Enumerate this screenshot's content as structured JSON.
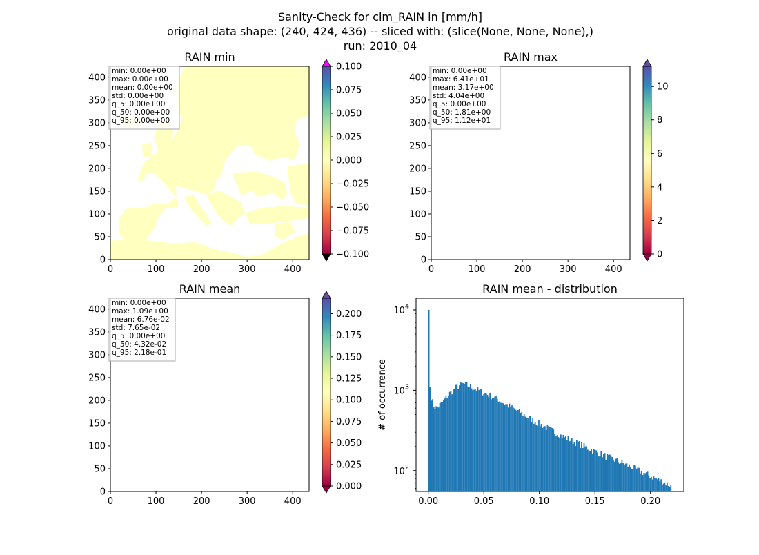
{
  "figure": {
    "title_lines": [
      "Sanity-Check for clm_RAIN in [mm/h]",
      "original data shape: (240, 424, 436) -- sliced with: (slice(None, None, None),)",
      "run: 2010_04"
    ]
  },
  "colors": {
    "colormap": [
      "#9e0142",
      "#d53e4f",
      "#f46d43",
      "#fdae61",
      "#fee08b",
      "#ffffbf",
      "#e6f598",
      "#abdda4",
      "#66c2a5",
      "#3288bd",
      "#5e4fa2"
    ],
    "cbar_over_min_panel": "#ff00ff",
    "cbar_under_min_panel": "#000000",
    "hist_bar": "#1f77b4",
    "box_edge": "#aaaaaa"
  },
  "chart_data": [
    {
      "type": "heatmap",
      "title": "RAIN min",
      "x_ticks": [
        "0",
        "100",
        "200",
        "300",
        "400"
      ],
      "y_ticks": [
        "0",
        "50",
        "100",
        "150",
        "200",
        "250",
        "300",
        "350",
        "400"
      ],
      "xlim": [
        0,
        436
      ],
      "ylim": [
        0,
        424
      ],
      "colorbar": {
        "ticks": [
          "−0.100",
          "−0.075",
          "−0.050",
          "−0.025",
          "0.000",
          "0.025",
          "0.050",
          "0.075",
          "0.100"
        ],
        "range": [
          -0.1,
          0.1
        ],
        "extend": "both"
      },
      "stats": [
        "min: 0.00e+00",
        "max: 0.00e+00",
        "mean: 0.00e+00",
        "std: 0.00e+00",
        "q_5: 0.00e+00",
        "q_50: 0.00e+00",
        "q_95: 0.00e+00"
      ],
      "field_value_on_land": 0.0
    },
    {
      "type": "heatmap",
      "title": "RAIN max",
      "x_ticks": [
        "0",
        "100",
        "200",
        "300",
        "400"
      ],
      "y_ticks": [
        "0",
        "50",
        "100",
        "150",
        "200",
        "250",
        "300",
        "350",
        "400"
      ],
      "xlim": [
        0,
        436
      ],
      "ylim": [
        0,
        424
      ],
      "colorbar": {
        "ticks": [
          "0",
          "2",
          "4",
          "6",
          "8",
          "10"
        ],
        "range": [
          0,
          11.2
        ],
        "extend": "both"
      },
      "stats": [
        "min: 0.00e+00",
        "max: 6.41e+01",
        "mean: 3.17e+00",
        "std: 4.04e+00",
        "q_5: 0.00e+00",
        "q_50: 1.81e+00",
        "q_95: 1.12e+01"
      ]
    },
    {
      "type": "heatmap",
      "title": "RAIN mean",
      "x_ticks": [
        "0",
        "100",
        "200",
        "300",
        "400"
      ],
      "y_ticks": [
        "0",
        "50",
        "100",
        "150",
        "200",
        "250",
        "300",
        "350",
        "400"
      ],
      "xlim": [
        0,
        436
      ],
      "ylim": [
        0,
        424
      ],
      "colorbar": {
        "ticks": [
          "0.000",
          "0.025",
          "0.050",
          "0.075",
          "0.100",
          "0.125",
          "0.150",
          "0.175",
          "0.200"
        ],
        "range": [
          0,
          0.218
        ],
        "extend": "both"
      },
      "stats": [
        "min: 0.00e+00",
        "max: 1.09e+00",
        "mean: 6.76e-02",
        "std: 7.65e-02",
        "q_5: 0.00e+00",
        "q_50: 4.32e-02",
        "q_95: 2.18e-01"
      ]
    },
    {
      "type": "bar",
      "title": "RAIN mean - distribution",
      "ylabel": "# of occurrence",
      "y_scale": "log",
      "x_ticks": [
        "0.00",
        "0.05",
        "0.10",
        "0.15",
        "0.20"
      ],
      "y_ticks": [
        {
          "base": "10",
          "exp": "2"
        },
        {
          "base": "10",
          "exp": "3"
        },
        {
          "base": "10",
          "exp": "4"
        }
      ],
      "xlim": [
        -0.011,
        0.23
      ],
      "ylim": [
        55,
        14000
      ],
      "bin_width": 0.0011,
      "profile_x": [
        0.0,
        0.0011,
        0.002,
        0.004,
        0.007,
        0.012,
        0.018,
        0.025,
        0.03,
        0.035,
        0.045,
        0.06,
        0.08,
        0.1,
        0.12,
        0.14,
        0.16,
        0.18,
        0.2,
        0.218
      ],
      "profile_counts": [
        10000,
        1100,
        850,
        650,
        600,
        700,
        900,
        1100,
        1200,
        1150,
        1000,
        800,
        550,
        380,
        270,
        200,
        150,
        115,
        85,
        65
      ]
    }
  ]
}
